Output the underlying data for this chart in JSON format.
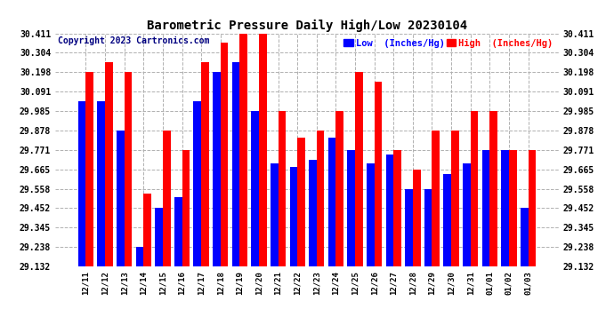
{
  "title": "Barometric Pressure Daily High/Low 20230104",
  "copyright": "Copyright 2023 Cartronics.com",
  "legend_low": "Low  (Inches/Hg)",
  "legend_high": "High  (Inches/Hg)",
  "labels": [
    "12/11",
    "12/12",
    "12/13",
    "12/14",
    "12/15",
    "12/16",
    "12/17",
    "12/18",
    "12/19",
    "12/20",
    "12/21",
    "12/22",
    "12/23",
    "12/24",
    "12/25",
    "12/26",
    "12/27",
    "12/28",
    "12/29",
    "12/30",
    "12/31",
    "01/01",
    "01/02",
    "01/03"
  ],
  "high_values": [
    30.198,
    30.251,
    30.198,
    29.53,
    29.878,
    29.771,
    30.251,
    30.358,
    30.411,
    30.411,
    29.985,
    29.838,
    29.878,
    29.985,
    30.198,
    30.145,
    29.771,
    29.665,
    29.878,
    29.878,
    29.985,
    29.985,
    29.771,
    29.771
  ],
  "low_values": [
    30.038,
    30.038,
    29.878,
    29.238,
    29.452,
    29.51,
    30.038,
    30.198,
    30.251,
    29.985,
    29.698,
    29.678,
    29.718,
    29.838,
    29.771,
    29.698,
    29.748,
    29.558,
    29.558,
    29.638,
    29.698,
    29.771,
    29.771,
    29.452
  ],
  "ymin": 29.132,
  "ymax": 30.411,
  "yticks": [
    29.132,
    29.238,
    29.345,
    29.452,
    29.558,
    29.665,
    29.771,
    29.878,
    29.985,
    30.091,
    30.198,
    30.304,
    30.411
  ],
  "low_color": "#0000ff",
  "high_color": "#ff0000",
  "bg_color": "#ffffff",
  "grid_color": "#b0b0b0",
  "title_color": "#000000",
  "bar_width": 0.4
}
